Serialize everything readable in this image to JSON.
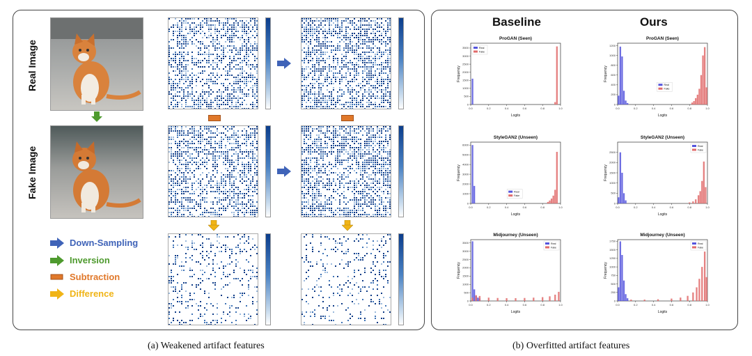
{
  "panel_a": {
    "row_labels": [
      "Real Image",
      "Fake Image"
    ],
    "legend": [
      {
        "label": "Down-Sampling",
        "color": "#3f63b8",
        "icon": "arrow-right-icon"
      },
      {
        "label": "Inversion",
        "color": "#4e9a2e",
        "icon": "arrow-right-icon"
      },
      {
        "label": "Subtraction",
        "color": "#e0782a",
        "icon": "minus-bar-icon"
      },
      {
        "label": "Difference",
        "color": "#f0b416",
        "icon": "arrow-right-icon"
      }
    ],
    "caption": "(a) Weakened artifact features"
  },
  "panel_b": {
    "columns": [
      "Baseline",
      "Ours"
    ],
    "caption": "(b) Overfitted artifact features",
    "colors": {
      "real": "#5555dd",
      "fake": "#e06b6b"
    }
  },
  "chart_data": [
    {
      "type": "bar",
      "title": "ProGAN (Seen)",
      "xlabel": "Logits",
      "ylabel": "Frequency",
      "legend": [
        "Real",
        "Fake"
      ],
      "legend_pos": "top-left",
      "xlim": [
        0,
        1
      ],
      "ylim": [
        0,
        3800
      ],
      "x_ticks": [
        "0.0",
        "0.2",
        "0.4",
        "0.6",
        "0.8",
        "1.0"
      ],
      "y_ticks": [
        "0",
        "500",
        "1000",
        "1500",
        "2000",
        "2500",
        "3000",
        "3500"
      ],
      "real": [
        {
          "x": 0.02,
          "y": 1600
        }
      ],
      "fake": [
        {
          "x": 0.96,
          "y": 3600
        },
        {
          "x": 0.94,
          "y": 150
        }
      ]
    },
    {
      "type": "bar",
      "title": "ProGAN (Seen)",
      "xlabel": "Logits",
      "ylabel": "Frequency",
      "legend": [
        "Real",
        "Fake"
      ],
      "legend_pos": "center",
      "xlim": [
        0,
        1
      ],
      "ylim": [
        0,
        1250
      ],
      "x_ticks": [
        "0.0",
        "0.2",
        "0.4",
        "0.6",
        "0.8",
        "1.0"
      ],
      "y_ticks": [
        "0",
        "200",
        "400",
        "600",
        "800",
        "1000",
        "1200"
      ],
      "real": [
        {
          "x": 0.01,
          "y": 180
        },
        {
          "x": 0.03,
          "y": 1180
        },
        {
          "x": 0.05,
          "y": 980
        },
        {
          "x": 0.07,
          "y": 280
        },
        {
          "x": 0.09,
          "y": 80
        },
        {
          "x": 0.11,
          "y": 30
        }
      ],
      "fake": [
        {
          "x": 0.83,
          "y": 40
        },
        {
          "x": 0.85,
          "y": 70
        },
        {
          "x": 0.87,
          "y": 130
        },
        {
          "x": 0.89,
          "y": 200
        },
        {
          "x": 0.91,
          "y": 320
        },
        {
          "x": 0.93,
          "y": 600
        },
        {
          "x": 0.95,
          "y": 1000
        },
        {
          "x": 0.97,
          "y": 1170
        },
        {
          "x": 0.99,
          "y": 350
        }
      ]
    },
    {
      "type": "bar",
      "title": "StyleGAN2 (Unseen)",
      "xlabel": "Logits",
      "ylabel": "Frequency",
      "legend": [
        "Real",
        "Fake"
      ],
      "legend_pos": "bottom-right",
      "xlim": [
        0,
        1
      ],
      "ylim": [
        0,
        6300
      ],
      "x_ticks": [
        "0.0",
        "0.2",
        "0.4",
        "0.6",
        "0.8",
        "1.0"
      ],
      "y_ticks": [
        "0",
        "1000",
        "2000",
        "3000",
        "4000",
        "5000",
        "6000"
      ],
      "real": [
        {
          "x": 0.02,
          "y": 6000
        },
        {
          "x": 0.04,
          "y": 1800
        }
      ],
      "fake": [
        {
          "x": 0.86,
          "y": 150
        },
        {
          "x": 0.88,
          "y": 300
        },
        {
          "x": 0.9,
          "y": 500
        },
        {
          "x": 0.92,
          "y": 800
        },
        {
          "x": 0.94,
          "y": 1400
        },
        {
          "x": 0.96,
          "y": 5300
        }
      ]
    },
    {
      "type": "bar",
      "title": "StyleGAN2 (Unseen)",
      "xlabel": "Logits",
      "ylabel": "Frequency",
      "legend": [
        "Real",
        "Fake"
      ],
      "legend_pos": "top-right",
      "xlim": [
        0,
        1
      ],
      "ylim": [
        0,
        3000
      ],
      "x_ticks": [
        "0.0",
        "0.2",
        "0.4",
        "0.6",
        "0.8",
        "1.0"
      ],
      "y_ticks": [
        "0",
        "500",
        "1000",
        "1500",
        "2000",
        "2500"
      ],
      "real": [
        {
          "x": 0.01,
          "y": 300
        },
        {
          "x": 0.03,
          "y": 2500
        },
        {
          "x": 0.05,
          "y": 1500
        },
        {
          "x": 0.07,
          "y": 500
        },
        {
          "x": 0.09,
          "y": 150
        }
      ],
      "fake": [
        {
          "x": 0.8,
          "y": 50
        },
        {
          "x": 0.84,
          "y": 100
        },
        {
          "x": 0.87,
          "y": 200
        },
        {
          "x": 0.9,
          "y": 400
        },
        {
          "x": 0.92,
          "y": 600
        },
        {
          "x": 0.94,
          "y": 1100
        },
        {
          "x": 0.96,
          "y": 2050
        },
        {
          "x": 0.98,
          "y": 800
        }
      ]
    },
    {
      "type": "bar",
      "title": "Midjourney (Unseen)",
      "xlabel": "Logits",
      "ylabel": "Frequency",
      "legend": [
        "Real",
        "Fake"
      ],
      "legend_pos": "top-right",
      "xlim": [
        0,
        1
      ],
      "ylim": [
        0,
        3700
      ],
      "x_ticks": [
        "0.0",
        "0.2",
        "0.4",
        "0.6",
        "0.8",
        "1.0"
      ],
      "y_ticks": [
        "0",
        "500",
        "1000",
        "1500",
        "2000",
        "2500",
        "3000",
        "3500"
      ],
      "real": [
        {
          "x": 0.02,
          "y": 3600
        },
        {
          "x": 0.04,
          "y": 700
        },
        {
          "x": 0.06,
          "y": 300
        },
        {
          "x": 0.08,
          "y": 200
        },
        {
          "x": 0.1,
          "y": 150
        }
      ],
      "fake": [
        {
          "x": 0.02,
          "y": 200
        },
        {
          "x": 0.06,
          "y": 350
        },
        {
          "x": 0.1,
          "y": 300
        },
        {
          "x": 0.2,
          "y": 200
        },
        {
          "x": 0.3,
          "y": 180
        },
        {
          "x": 0.4,
          "y": 170
        },
        {
          "x": 0.5,
          "y": 170
        },
        {
          "x": 0.6,
          "y": 180
        },
        {
          "x": 0.7,
          "y": 200
        },
        {
          "x": 0.8,
          "y": 230
        },
        {
          "x": 0.88,
          "y": 280
        },
        {
          "x": 0.94,
          "y": 380
        },
        {
          "x": 0.98,
          "y": 550
        }
      ]
    },
    {
      "type": "bar",
      "title": "Midjourney (Unseen)",
      "xlabel": "Logits",
      "ylabel": "Frequency",
      "legend": [
        "Real",
        "Fake"
      ],
      "legend_pos": "top-right",
      "xlim": [
        0,
        1
      ],
      "ylim": [
        0,
        1800
      ],
      "x_ticks": [
        "0.0",
        "0.2",
        "0.4",
        "0.6",
        "0.8",
        "1.0"
      ],
      "y_ticks": [
        "0",
        "250",
        "500",
        "750",
        "1000",
        "1250",
        "1500",
        "1750"
      ],
      "real": [
        {
          "x": 0.01,
          "y": 400
        },
        {
          "x": 0.03,
          "y": 1750
        },
        {
          "x": 0.05,
          "y": 1350
        },
        {
          "x": 0.07,
          "y": 600
        },
        {
          "x": 0.09,
          "y": 200
        },
        {
          "x": 0.11,
          "y": 80
        }
      ],
      "fake": [
        {
          "x": 0.15,
          "y": 40
        },
        {
          "x": 0.3,
          "y": 40
        },
        {
          "x": 0.45,
          "y": 50
        },
        {
          "x": 0.6,
          "y": 70
        },
        {
          "x": 0.7,
          "y": 100
        },
        {
          "x": 0.78,
          "y": 150
        },
        {
          "x": 0.84,
          "y": 250
        },
        {
          "x": 0.88,
          "y": 400
        },
        {
          "x": 0.91,
          "y": 650
        },
        {
          "x": 0.94,
          "y": 1000
        },
        {
          "x": 0.97,
          "y": 1450
        },
        {
          "x": 0.99,
          "y": 700
        }
      ]
    }
  ]
}
